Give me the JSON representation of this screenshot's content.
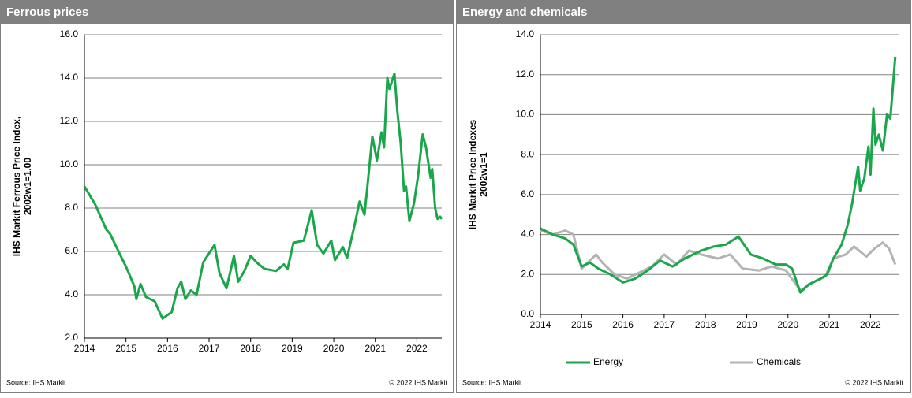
{
  "chart_data": [
    {
      "type": "line",
      "title": "Ferrous prices",
      "ylabel_lines": [
        "IHS Markit Ferrous Price Index,",
        "2002w1=1.00"
      ],
      "source": "Source: IHS Markit",
      "copyright": "© 2022  IHS Markit",
      "color": "#1aa64a",
      "grid": true,
      "x": [
        2014.0,
        2014.25,
        2014.53,
        2014.62,
        2014.82,
        2015.0,
        2015.2,
        2015.25,
        2015.35,
        2015.48,
        2015.69,
        2015.88,
        2016.1,
        2016.24,
        2016.33,
        2016.43,
        2016.56,
        2016.7,
        2016.86,
        2017.13,
        2017.25,
        2017.42,
        2017.6,
        2017.7,
        2017.85,
        2018.0,
        2018.14,
        2018.33,
        2018.61,
        2018.8,
        2018.89,
        2019.03,
        2019.28,
        2019.47,
        2019.6,
        2019.75,
        2019.94,
        2020.03,
        2020.22,
        2020.32,
        2020.5,
        2020.62,
        2020.74,
        2020.81,
        2020.93,
        2021.04,
        2021.15,
        2021.21,
        2021.29,
        2021.34,
        2021.46,
        2021.53,
        2021.61,
        2021.69,
        2021.74,
        2021.82,
        2021.93,
        2022.03,
        2022.14,
        2022.22,
        2022.33,
        2022.37,
        2022.44,
        2022.5,
        2022.56,
        2022.6
      ],
      "values": [
        9.0,
        8.2,
        7.0,
        6.8,
        6.0,
        5.3,
        4.4,
        3.8,
        4.5,
        3.9,
        3.7,
        2.9,
        3.2,
        4.3,
        4.6,
        3.8,
        4.2,
        4.0,
        5.5,
        6.3,
        5.0,
        4.3,
        5.8,
        4.6,
        5.1,
        5.8,
        5.5,
        5.2,
        5.1,
        5.4,
        5.2,
        6.4,
        6.5,
        7.9,
        6.3,
        5.9,
        6.5,
        5.6,
        6.2,
        5.7,
        7.2,
        8.3,
        7.7,
        9.0,
        11.3,
        10.2,
        11.5,
        10.8,
        14.0,
        13.5,
        14.2,
        12.5,
        11.0,
        8.8,
        9.0,
        7.4,
        8.2,
        9.5,
        11.4,
        10.8,
        9.4,
        9.8,
        8.0,
        7.5,
        7.6,
        7.5
      ],
      "xlim": [
        2014,
        2022.6
      ],
      "xticks": [
        2014,
        2015,
        2016,
        2017,
        2018,
        2019,
        2020,
        2021,
        2022
      ],
      "ylim": [
        2,
        16
      ],
      "yticks": [
        {
          "value": 2,
          "label": "2.0"
        },
        {
          "value": 4,
          "label": "4.0"
        },
        {
          "value": 6,
          "label": "6.0"
        },
        {
          "value": 8,
          "label": "8.0"
        },
        {
          "value": 10,
          "label": "10.0"
        },
        {
          "value": 12,
          "label": "12.0"
        },
        {
          "value": 14,
          "label": "14.0"
        },
        {
          "value": 16,
          "label": "16.0"
        }
      ]
    },
    {
      "type": "line",
      "title": "Energy and chemicals",
      "ylabel_lines": [
        "IHS Markit Price Indexes",
        "2002w1=1"
      ],
      "source": "Source: IHS Markit",
      "copyright": "© 2022  IHS Markit",
      "grid": true,
      "legend": "bottom",
      "series": [
        {
          "name": "Energy",
          "color": "#1aa64a",
          "x": [
            2014.0,
            2014.3,
            2014.6,
            2014.8,
            2015.0,
            2015.2,
            2015.4,
            2015.7,
            2016.0,
            2016.3,
            2016.6,
            2016.9,
            2017.2,
            2017.5,
            2017.9,
            2018.2,
            2018.5,
            2018.8,
            2019.1,
            2019.4,
            2019.7,
            2019.95,
            2020.1,
            2020.3,
            2020.5,
            2020.8,
            2020.95,
            2021.1,
            2021.3,
            2021.45,
            2021.55,
            2021.7,
            2021.75,
            2021.85,
            2021.95,
            2022.0,
            2022.07,
            2022.12,
            2022.2,
            2022.3,
            2022.4,
            2022.48,
            2022.52,
            2022.6
          ],
          "values": [
            4.3,
            4.0,
            3.8,
            3.5,
            2.4,
            2.6,
            2.3,
            2.0,
            1.6,
            1.8,
            2.2,
            2.7,
            2.4,
            2.8,
            3.2,
            3.4,
            3.5,
            3.9,
            3.0,
            2.8,
            2.5,
            2.5,
            2.3,
            1.1,
            1.5,
            1.8,
            2.0,
            2.8,
            3.5,
            4.5,
            5.5,
            7.4,
            6.2,
            6.8,
            8.4,
            7.0,
            10.3,
            8.5,
            9.0,
            8.2,
            10.0,
            9.8,
            10.8,
            12.9
          ]
        },
        {
          "name": "Chemicals",
          "color": "#b3b3b3",
          "x": [
            2014.0,
            2014.3,
            2014.6,
            2014.8,
            2015.0,
            2015.35,
            2015.5,
            2015.8,
            2016.1,
            2016.4,
            2016.7,
            2017.0,
            2017.3,
            2017.6,
            2017.9,
            2018.3,
            2018.6,
            2018.9,
            2019.3,
            2019.6,
            2019.95,
            2020.3,
            2020.6,
            2020.9,
            2021.1,
            2021.4,
            2021.6,
            2021.9,
            2022.1,
            2022.3,
            2022.45,
            2022.6
          ],
          "values": [
            4.2,
            4.0,
            4.2,
            4.0,
            2.3,
            3.0,
            2.6,
            2.0,
            1.8,
            2.1,
            2.4,
            3.0,
            2.5,
            3.2,
            3.0,
            2.8,
            3.0,
            2.3,
            2.2,
            2.4,
            2.2,
            1.2,
            1.6,
            1.9,
            2.8,
            3.0,
            3.4,
            2.9,
            3.3,
            3.6,
            3.3,
            2.5
          ]
        }
      ],
      "xlim": [
        2014,
        2022.7
      ],
      "xticks": [
        2014,
        2015,
        2016,
        2017,
        2018,
        2019,
        2020,
        2021,
        2022
      ],
      "ylim": [
        0,
        14
      ],
      "yticks": [
        {
          "value": 0,
          "label": "0.0"
        },
        {
          "value": 2,
          "label": "2.0"
        },
        {
          "value": 4,
          "label": "4.0"
        },
        {
          "value": 6,
          "label": "6.0"
        },
        {
          "value": 8,
          "label": "8.0"
        },
        {
          "value": 10,
          "label": "10.0"
        },
        {
          "value": 12,
          "label": "12.0"
        },
        {
          "value": 14,
          "label": "14.0"
        }
      ]
    }
  ]
}
